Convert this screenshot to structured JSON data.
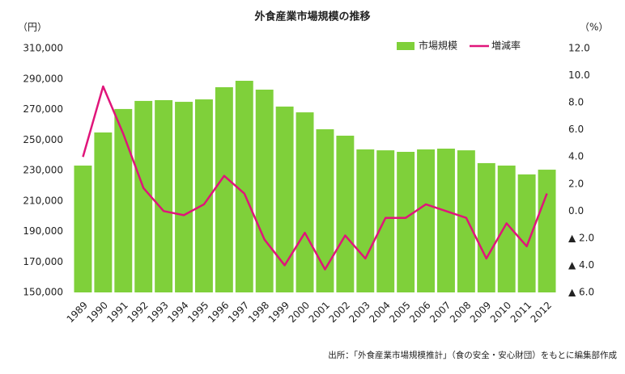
{
  "chart_data": {
    "type": "bar_line",
    "title": "外食産業市場規模の推移",
    "y_unit": "（円）",
    "y2_unit": "（%）",
    "source": "出所：「外食産業市場規模推計」（食の安全・安心財団）をもとに編集部作成",
    "categories": [
      "1989",
      "1990",
      "1991",
      "1992",
      "1993",
      "1994",
      "1995",
      "1996",
      "1997",
      "1998",
      "1999",
      "2000",
      "2001",
      "2002",
      "2003",
      "2004",
      "2005",
      "2006",
      "2007",
      "2008",
      "2009",
      "2010",
      "2011",
      "2012"
    ],
    "series": [
      {
        "name": "市場規模",
        "type": "bar",
        "color": "#7fd03a",
        "axis": "y",
        "values": [
          233200,
          254900,
          270300,
          275600,
          276100,
          275000,
          276600,
          284600,
          288800,
          283000,
          271900,
          268100,
          257000,
          252800,
          243800,
          243200,
          242200,
          243800,
          244300,
          243200,
          234800,
          233200,
          227400,
          230500
        ]
      },
      {
        "name": "増減率",
        "type": "line",
        "color": "#e0157a",
        "axis": "y2",
        "values": [
          4.0,
          9.2,
          5.7,
          1.7,
          0.0,
          -0.3,
          0.5,
          2.6,
          1.3,
          -2.1,
          -4.0,
          -1.6,
          -4.3,
          -1.8,
          -3.5,
          -0.5,
          -0.5,
          0.5,
          0.0,
          -0.5,
          -3.5,
          -0.9,
          -2.6,
          1.3
        ]
      }
    ],
    "ylim": [
      150000,
      310000
    ],
    "yticks": [
      {
        "value": 150000,
        "label": "150,000"
      },
      {
        "value": 170000,
        "label": "170,000"
      },
      {
        "value": 190000,
        "label": "190,000"
      },
      {
        "value": 210000,
        "label": "210,000"
      },
      {
        "value": 230000,
        "label": "230,000"
      },
      {
        "value": 250000,
        "label": "250,000"
      },
      {
        "value": 270000,
        "label": "270,000"
      },
      {
        "value": 290000,
        "label": "290,000"
      },
      {
        "value": 310000,
        "label": "310,000"
      }
    ],
    "y2lim": [
      -6,
      12
    ],
    "y2ticks": [
      {
        "value": 12,
        "label": "12.0"
      },
      {
        "value": 10,
        "label": "10.0"
      },
      {
        "value": 8,
        "label": "8.0"
      },
      {
        "value": 6,
        "label": "6.0"
      },
      {
        "value": 4,
        "label": "4.0"
      },
      {
        "value": 2,
        "label": "2.0"
      },
      {
        "value": 0,
        "label": "0.0"
      },
      {
        "value": -2,
        "label": "▲ 2.0"
      },
      {
        "value": -4,
        "label": "▲ 4.0"
      },
      {
        "value": -6,
        "label": "▲ 6.0"
      }
    ],
    "grid": false
  }
}
